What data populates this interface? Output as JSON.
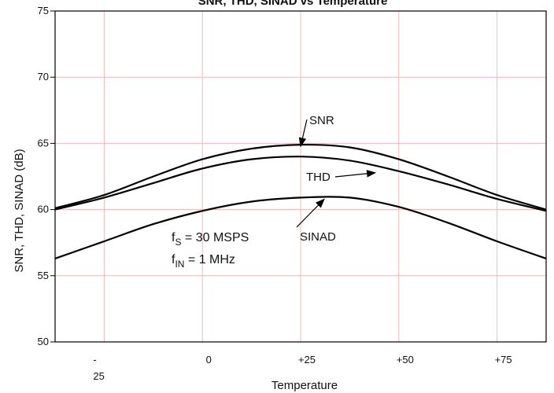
{
  "chart_data": {
    "type": "line",
    "title": "SNR, THD, SINAD vs Temperature",
    "xlabel": "Temperature",
    "ylabel": "SNR, THD, SINAD (dB)",
    "xlim": [
      -37.5,
      87.5
    ],
    "ylim": [
      50,
      75
    ],
    "grid": true,
    "x_ticks": [
      {
        "value": -25,
        "label": "-\n25"
      },
      {
        "value": 0,
        "label": "0"
      },
      {
        "value": 25,
        "label": "+25"
      },
      {
        "value": 50,
        "label": "+50"
      },
      {
        "value": 75,
        "label": "+75"
      }
    ],
    "y_ticks": [
      50,
      55,
      60,
      65,
      70,
      75
    ],
    "x": [
      -37.5,
      -25,
      -12.5,
      0,
      12.5,
      25,
      37.5,
      50,
      62.5,
      75,
      87.5
    ],
    "series": [
      {
        "name": "SNR",
        "values": [
          60.1,
          61.1,
          62.5,
          63.8,
          64.6,
          64.9,
          64.7,
          63.8,
          62.5,
          61.1,
          60.0
        ]
      },
      {
        "name": "THD",
        "values": [
          60.0,
          60.9,
          62.0,
          63.1,
          63.8,
          64.0,
          63.7,
          62.9,
          61.9,
          60.8,
          59.9
        ]
      },
      {
        "name": "SINAD",
        "values": [
          56.3,
          57.6,
          58.9,
          59.9,
          60.6,
          60.9,
          60.9,
          60.2,
          59.0,
          57.6,
          56.3
        ]
      }
    ],
    "annotations": {
      "conditions": [
        {
          "main": "f",
          "sub": "S",
          "rest": " = 30 MSPS"
        },
        {
          "main": "f",
          "sub": "IN",
          "rest": " = 1 MHz"
        }
      ]
    },
    "colors": {
      "grid": "#f3b8b8",
      "line": "#000000",
      "axis": "#000000"
    }
  }
}
